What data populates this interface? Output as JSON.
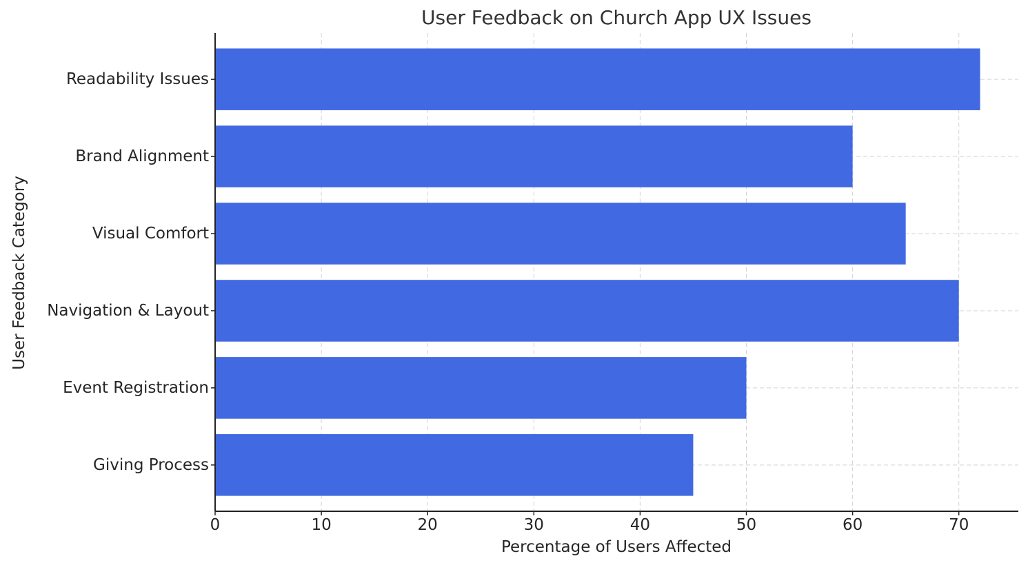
{
  "chart_data": {
    "type": "bar",
    "orientation": "horizontal",
    "title": "User Feedback on Church App UX Issues",
    "xlabel": "Percentage of Users Affected",
    "ylabel": "User Feedback Category",
    "categories": [
      "Giving Process",
      "Event Registration",
      "Navigation & Layout",
      "Visual Comfort",
      "Brand Alignment",
      "Readability Issues"
    ],
    "values": [
      45,
      50,
      70,
      65,
      60,
      72
    ],
    "xlim": [
      0,
      75.6
    ],
    "xticks": [
      0,
      10,
      20,
      30,
      40,
      50,
      60,
      70
    ],
    "grid": true,
    "bar_color": "#4169e1"
  }
}
